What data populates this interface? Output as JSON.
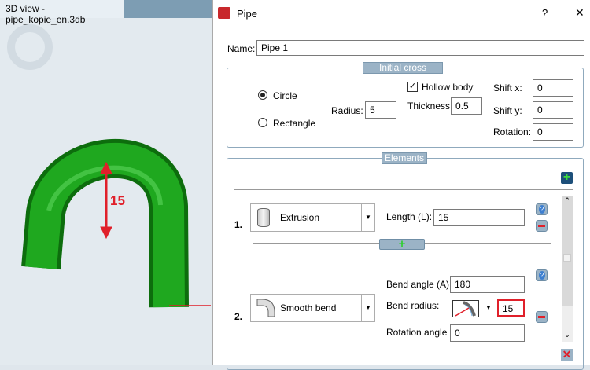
{
  "view": {
    "tab_title": "3D view - pipe_kopie_en.3db",
    "dimension_label": "15"
  },
  "dialog": {
    "title": "Pipe",
    "help": "?",
    "close": "✕",
    "name_label": "Name:",
    "name_value": "Pipe 1",
    "cross_section": {
      "legend": "Initial cross section",
      "circle": "Circle",
      "rectangle": "Rectangle",
      "selected": "Circle",
      "radius_label": "Radius:",
      "radius": "5",
      "hollow_label": "Hollow body",
      "hollow_checked": true,
      "thickness_label": "Thickness:",
      "thickness": "0.5",
      "shiftx_label": "Shift x:",
      "shiftx": "0",
      "shifty_label": "Shift y:",
      "shifty": "0",
      "rotation_label": "Rotation:",
      "rotation": "0"
    },
    "elements": {
      "legend": "Elements",
      "items": [
        {
          "num": "1.",
          "type": "Extrusion",
          "length_label": "Length (L):",
          "length": "15"
        },
        {
          "num": "2.",
          "type": "Smooth bend",
          "angle_label": "Bend angle (A):",
          "angle": "180",
          "radius_label": "Bend radius:",
          "radius": "15",
          "rot_label": "Rotation angle",
          "rot": "0"
        }
      ]
    }
  },
  "colors": {
    "pipe": "#1a9a1a",
    "highlight": "#e0202a",
    "accent": "#9bb3c6"
  }
}
